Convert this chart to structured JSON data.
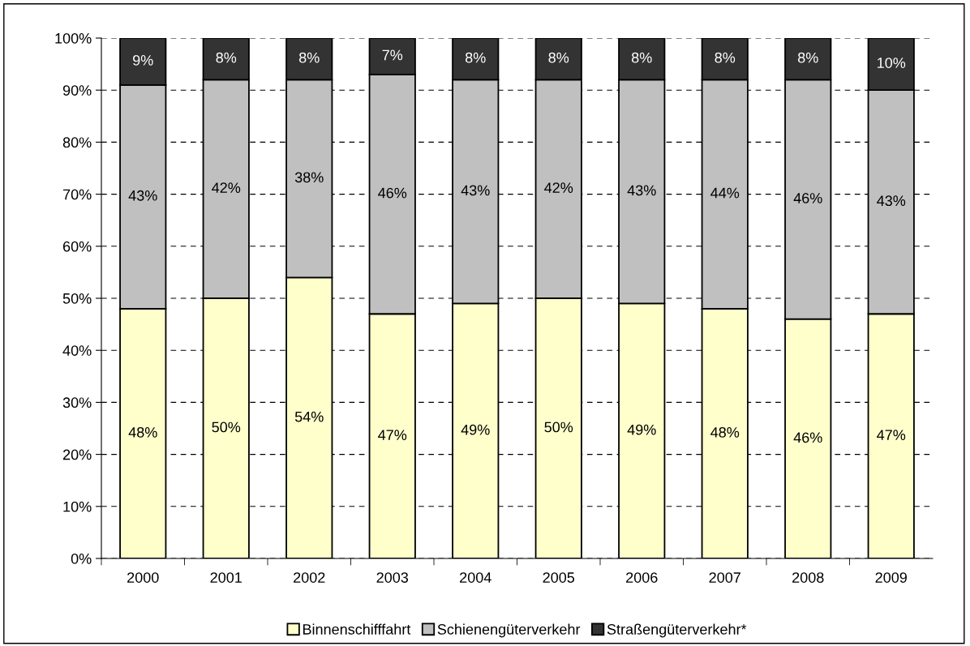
{
  "chart_data": {
    "type": "bar",
    "stacked": true,
    "categories": [
      "2000",
      "2001",
      "2002",
      "2003",
      "2004",
      "2005",
      "2006",
      "2007",
      "2008",
      "2009"
    ],
    "series": [
      {
        "name": "Binnenschifffahrt",
        "color": "#ffffcc",
        "values": [
          48,
          50,
          54,
          47,
          49,
          50,
          49,
          48,
          46,
          47
        ],
        "value_labels": [
          "48%",
          "50%",
          "54%",
          "47%",
          "49%",
          "50%",
          "49%",
          "48%",
          "46%",
          "47%"
        ]
      },
      {
        "name": "Schienengüterverkehr",
        "color": "#c0c0c0",
        "values": [
          43,
          42,
          38,
          46,
          43,
          42,
          43,
          44,
          46,
          43
        ],
        "value_labels": [
          "43%",
          "42%",
          "38%",
          "46%",
          "43%",
          "42%",
          "43%",
          "44%",
          "46%",
          "43%"
        ]
      },
      {
        "name": "Straßengüterverkehr*",
        "color": "#333333",
        "values": [
          9,
          8,
          8,
          7,
          8,
          8,
          8,
          8,
          8,
          10
        ],
        "value_labels": [
          "9%",
          "8%",
          "8%",
          "7%",
          "8%",
          "8%",
          "8%",
          "8%",
          "8%",
          "10%"
        ]
      }
    ],
    "ylim": [
      0,
      100
    ],
    "yticks": [
      {
        "value": 0,
        "label": "0%"
      },
      {
        "value": 10,
        "label": "10%"
      },
      {
        "value": 20,
        "label": "20%"
      },
      {
        "value": 30,
        "label": "30%"
      },
      {
        "value": 40,
        "label": "40%"
      },
      {
        "value": 50,
        "label": "50%"
      },
      {
        "value": 60,
        "label": "60%"
      },
      {
        "value": 70,
        "label": "70%"
      },
      {
        "value": 80,
        "label": "80%"
      },
      {
        "value": 90,
        "label": "90%"
      },
      {
        "value": 100,
        "label": "100%"
      }
    ],
    "grid": "y",
    "legend": "bottom"
  }
}
